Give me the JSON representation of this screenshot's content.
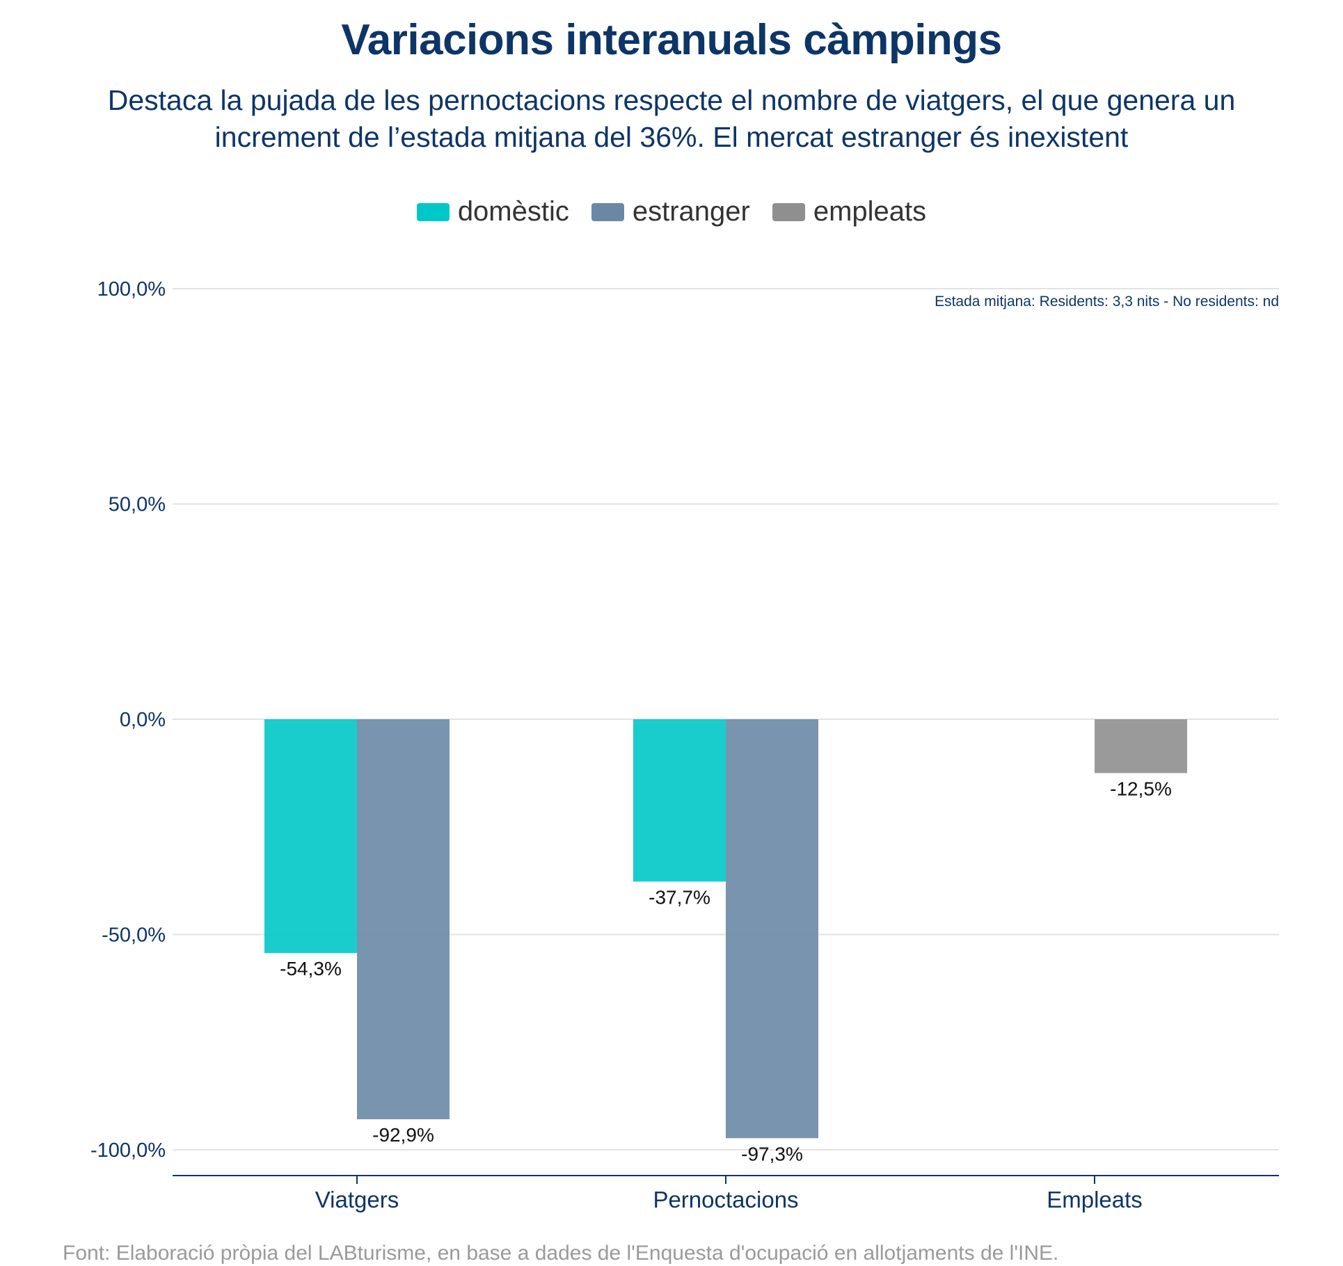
{
  "chart_data": {
    "type": "bar",
    "title": "Variacions interanuals càmpings",
    "subtitle": "Destaca la pujada de les pernoctacions respecte el nombre de viatgers, el que genera un increment de l’estada mitjana del 36%. El mercat estranger és inexistent",
    "categories": [
      "Viatgers",
      "Pernoctacions",
      "Empleats"
    ],
    "series": [
      {
        "name": "domèstic",
        "color": "#00c8c8",
        "values": [
          -54.3,
          -37.7,
          null
        ],
        "labels": [
          "-54,3%",
          "-37,7%",
          ""
        ]
      },
      {
        "name": "estranger",
        "color": "#6a88a6",
        "values": [
          -92.9,
          -97.3,
          null
        ],
        "labels": [
          "-92,9%",
          "-97,3%",
          ""
        ]
      },
      {
        "name": "empleats",
        "color": "#8f8f8f",
        "values": [
          null,
          null,
          -12.5
        ],
        "labels": [
          "",
          "",
          "-12,5%"
        ]
      }
    ],
    "ylim": [
      -100,
      100
    ],
    "yticks": [
      100,
      50,
      0,
      -50,
      -100
    ],
    "ytick_labels": [
      "100,0%",
      "50,0%",
      "0,0%",
      "-50,0%",
      "-100,0%"
    ],
    "grid": true,
    "legend_position": "top",
    "annotation": "Estada mitjana: Residents: 3,3 nits - No residents: nd",
    "xlabel": "",
    "ylabel": ""
  },
  "source": "Font: Elaboració pròpia del LABturisme, en base a dades de l'Enquesta d'ocupació en allotjaments de l'INE."
}
